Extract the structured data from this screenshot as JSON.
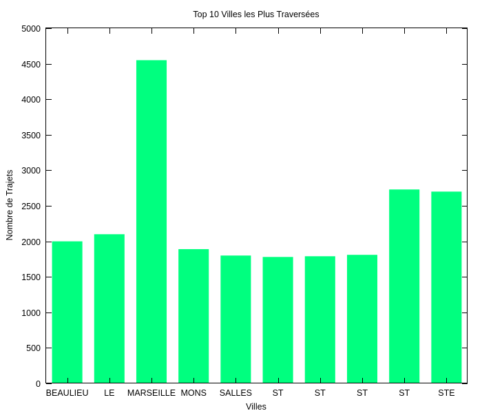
{
  "chart_data": {
    "type": "bar",
    "title": "Top 10 Villes les Plus Traversées",
    "xlabel": "Villes",
    "ylabel": "Nombre de Trajets",
    "categories": [
      "BEAULIEU",
      "LE",
      "MARSEILLE",
      "MONS",
      "SALLES",
      "ST",
      "ST",
      "ST",
      "ST",
      "STE"
    ],
    "values": [
      2000,
      2100,
      4550,
      1890,
      1800,
      1780,
      1790,
      1810,
      2730,
      2700
    ],
    "ylim": [
      0,
      5000
    ],
    "yticks": [
      0,
      500,
      1000,
      1500,
      2000,
      2500,
      3000,
      3500,
      4000,
      4500,
      5000
    ],
    "bar_color": "#00ff7f",
    "grid": false,
    "legend": "none"
  }
}
